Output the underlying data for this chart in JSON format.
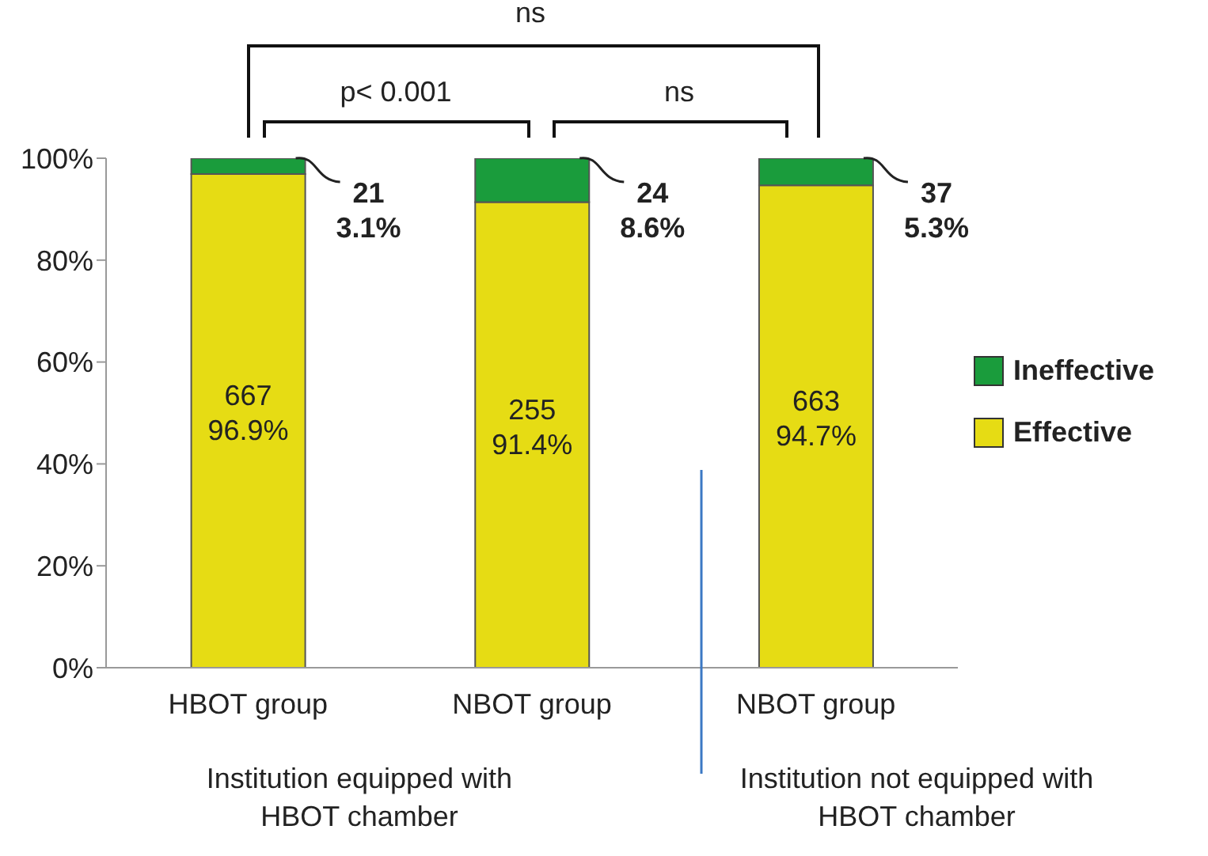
{
  "chart_data": {
    "type": "bar",
    "stacked": true,
    "categories": [
      "HBOT group",
      "NBOT group",
      "NBOT group"
    ],
    "series": [
      {
        "name": "Effective",
        "color": "#e6dc14",
        "values": [
          96.9,
          91.4,
          94.7
        ],
        "value_labels": [
          "667\n96.9%",
          "255\n91.4%",
          "663\n94.7%"
        ]
      },
      {
        "name": "Ineffective",
        "color": "#1a9c3c",
        "values": [
          3.1,
          8.6,
          5.3
        ],
        "value_labels": [
          "21\n3.1%",
          "24\n8.6%",
          "37\n5.3%"
        ]
      }
    ],
    "ylim": [
      0,
      100
    ],
    "yticks": [
      {
        "value": 0,
        "label": "0%"
      },
      {
        "value": 20,
        "label": "20%"
      },
      {
        "value": 40,
        "label": "40%"
      },
      {
        "value": 60,
        "label": "60%"
      },
      {
        "value": 80,
        "label": "80%"
      },
      {
        "value": 100,
        "label": "100%"
      }
    ],
    "grid": false,
    "legend": "right",
    "annotations": [
      "ns",
      "p< 0.001",
      "ns",
      "Institution equipped with HBOT chamber",
      "Institution not equipped with HBOT chamber"
    ]
  }
}
